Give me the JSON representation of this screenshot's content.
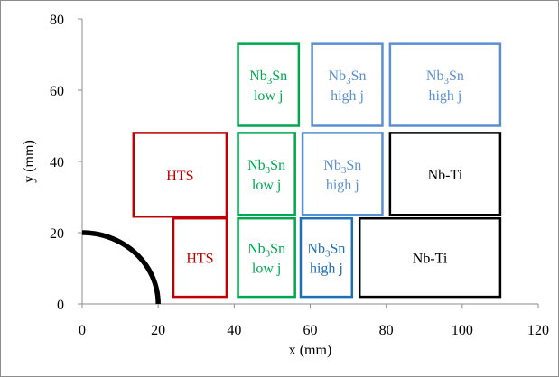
{
  "chart_data": {
    "type": "diagram",
    "title": "",
    "xlabel": "x (mm)",
    "ylabel": "y (mm)",
    "xlim": [
      0,
      120
    ],
    "ylim": [
      0,
      80
    ],
    "xticks": [
      0,
      20,
      40,
      60,
      80,
      100,
      120
    ],
    "yticks": [
      0,
      20,
      40,
      60,
      80
    ],
    "grid": false,
    "arc": {
      "center": [
        0,
        0
      ],
      "radius_mm": 20,
      "from_deg": 0,
      "to_deg": 90,
      "color": "#000000"
    },
    "blocks": [
      {
        "id": "hts-outer",
        "x0": 13.5,
        "x1": 38,
        "y0": 24.5,
        "y1": 48,
        "color": "#c00000",
        "lines": [
          {
            "text": "HTS"
          }
        ]
      },
      {
        "id": "hts-inner",
        "x0": 24,
        "x1": 38,
        "y0": 2,
        "y1": 24,
        "color": "#c00000",
        "lines": [
          {
            "text": "HTS"
          }
        ]
      },
      {
        "id": "nb3sn-low-top",
        "x0": 41,
        "x1": 57,
        "y0": 50,
        "y1": 73,
        "color": "#00a650",
        "lines": [
          {
            "text": "Nb",
            "sub": "3",
            "after": "Sn"
          },
          {
            "text": "low j"
          }
        ]
      },
      {
        "id": "nb3sn-low-mid",
        "x0": 41,
        "x1": 56,
        "y0": 25,
        "y1": 48,
        "color": "#00a650",
        "lines": [
          {
            "text": "Nb",
            "sub": "3",
            "after": "Sn"
          },
          {
            "text": "low j"
          }
        ]
      },
      {
        "id": "nb3sn-low-bot",
        "x0": 41,
        "x1": 56,
        "y0": 2,
        "y1": 24,
        "color": "#00a650",
        "lines": [
          {
            "text": "Nb",
            "sub": "3",
            "after": "Sn"
          },
          {
            "text": "low j"
          }
        ]
      },
      {
        "id": "nb3sn-high-top1",
        "x0": 60.5,
        "x1": 79,
        "y0": 50,
        "y1": 73,
        "color": "#5b8fd0",
        "lines": [
          {
            "text": "Nb",
            "sub": "3",
            "after": "Sn"
          },
          {
            "text": "high j"
          }
        ]
      },
      {
        "id": "nb3sn-high-top2",
        "x0": 81,
        "x1": 110,
        "y0": 50,
        "y1": 73,
        "color": "#5b8fd0",
        "lines": [
          {
            "text": "Nb",
            "sub": "3",
            "after": "Sn"
          },
          {
            "text": "high j"
          }
        ]
      },
      {
        "id": "nb3sn-high-mid",
        "x0": 58,
        "x1": 79,
        "y0": 25,
        "y1": 48,
        "color": "#5b8fd0",
        "lines": [
          {
            "text": "Nb",
            "sub": "3",
            "after": "Sn"
          },
          {
            "text": "high j"
          }
        ]
      },
      {
        "id": "nb3sn-high-bot",
        "x0": 57.5,
        "x1": 71,
        "y0": 2,
        "y1": 24,
        "color": "#1f6fb4",
        "lines": [
          {
            "text": "Nb",
            "sub": "3",
            "after": "Sn"
          },
          {
            "text": "high j"
          }
        ]
      },
      {
        "id": "nbti-mid",
        "x0": 81,
        "x1": 110,
        "y0": 25,
        "y1": 48,
        "color": "#000000",
        "lines": [
          {
            "text": "Nb-Ti"
          }
        ]
      },
      {
        "id": "nbti-bot",
        "x0": 73,
        "x1": 110,
        "y0": 2,
        "y1": 24,
        "color": "#000000",
        "lines": [
          {
            "text": "Nb-Ti"
          }
        ]
      }
    ]
  }
}
